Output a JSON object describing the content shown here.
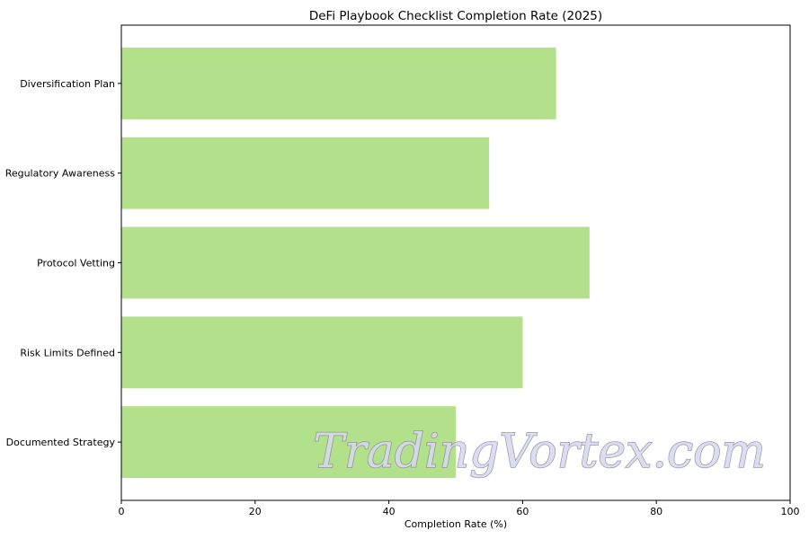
{
  "chart_data": {
    "type": "bar",
    "orientation": "horizontal",
    "title": "DeFi Playbook Checklist Completion Rate (2025)",
    "xlabel": "Completion Rate (%)",
    "ylabel": "",
    "categories": [
      "Documented Strategy",
      "Risk Limits Defined",
      "Protocol Vetting",
      "Regulatory Awareness",
      "Diversification Plan"
    ],
    "values": [
      50,
      60,
      70,
      55,
      65
    ],
    "xlim": [
      0,
      100
    ],
    "xticks": [
      0,
      20,
      40,
      60,
      80,
      100
    ],
    "grid": false,
    "bar_color": "#b3e08b"
  },
  "watermark": "TradingVortex.com"
}
